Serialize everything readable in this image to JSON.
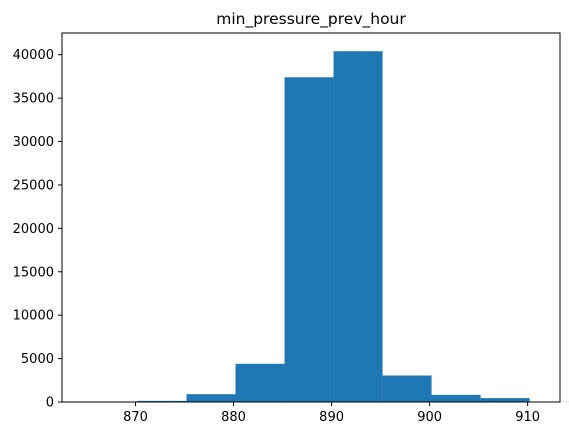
{
  "chart_data": {
    "type": "bar",
    "subtype": "histogram",
    "title": "min_pressure_prev_hour",
    "xlabel": "",
    "ylabel": "",
    "xlim": [
      862.5,
      913.3
    ],
    "ylim": [
      0,
      42500
    ],
    "xticks": [
      870,
      880,
      890,
      900,
      910
    ],
    "yticks": [
      0,
      5000,
      10000,
      15000,
      20000,
      25000,
      30000,
      35000,
      40000
    ],
    "bins": [
      {
        "x0": 865.2,
        "x1": 870.2,
        "value": 40
      },
      {
        "x0": 870.2,
        "x1": 875.2,
        "value": 130
      },
      {
        "x0": 875.2,
        "x1": 880.2,
        "value": 900
      },
      {
        "x0": 880.2,
        "x1": 885.2,
        "value": 4400
      },
      {
        "x0": 885.2,
        "x1": 890.2,
        "value": 37400
      },
      {
        "x0": 890.2,
        "x1": 895.2,
        "value": 40400
      },
      {
        "x0": 895.2,
        "x1": 900.2,
        "value": 3050
      },
      {
        "x0": 900.2,
        "x1": 905.2,
        "value": 820
      },
      {
        "x0": 905.2,
        "x1": 910.2,
        "value": 450
      },
      {
        "x0": 910.2,
        "x1": 915.2,
        "value": 15
      }
    ],
    "bar_color": "#1f77b4",
    "grid": false,
    "legend": "none"
  }
}
